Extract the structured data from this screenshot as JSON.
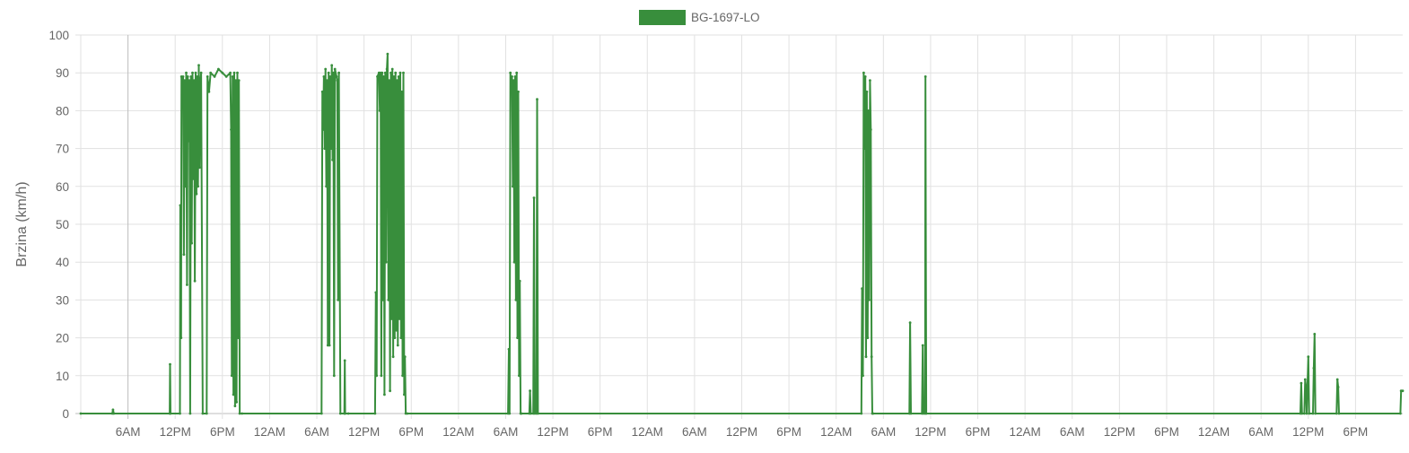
{
  "chart_data": {
    "type": "line",
    "legend": {
      "position": "top",
      "entries": [
        {
          "name": "BG-1697-LO",
          "color": "#388e3c"
        }
      ]
    },
    "ylabel": "Brzina (km/h)",
    "xlabel": "",
    "ylim": [
      0,
      100
    ],
    "y_ticks": [
      0,
      10,
      20,
      30,
      40,
      50,
      60,
      70,
      80,
      90,
      100
    ],
    "x_range_hours": [
      0,
      168
    ],
    "x_ticks": [
      {
        "h": 6,
        "label": "6AM"
      },
      {
        "h": 12,
        "label": "12PM"
      },
      {
        "h": 18,
        "label": "6PM"
      },
      {
        "h": 24,
        "label": "12AM"
      },
      {
        "h": 30,
        "label": "6AM"
      },
      {
        "h": 36,
        "label": "12PM"
      },
      {
        "h": 42,
        "label": "6PM"
      },
      {
        "h": 48,
        "label": "12AM"
      },
      {
        "h": 54,
        "label": "6AM"
      },
      {
        "h": 60,
        "label": "12PM"
      },
      {
        "h": 66,
        "label": "6PM"
      },
      {
        "h": 72,
        "label": "12AM"
      },
      {
        "h": 78,
        "label": "6AM"
      },
      {
        "h": 84,
        "label": "12PM"
      },
      {
        "h": 90,
        "label": "6PM"
      },
      {
        "h": 96,
        "label": "12AM"
      },
      {
        "h": 102,
        "label": "6AM"
      },
      {
        "h": 108,
        "label": "12PM"
      },
      {
        "h": 114,
        "label": "6PM"
      },
      {
        "h": 120,
        "label": "12AM"
      },
      {
        "h": 126,
        "label": "6AM"
      },
      {
        "h": 132,
        "label": "12PM"
      },
      {
        "h": 138,
        "label": "6PM"
      },
      {
        "h": 144,
        "label": "12AM"
      },
      {
        "h": 150,
        "label": "6AM"
      },
      {
        "h": 156,
        "label": "12PM"
      },
      {
        "h": 162,
        "label": "6PM"
      }
    ],
    "grid": true,
    "series": [
      {
        "name": "BG-1697-LO",
        "color": "#388e3c",
        "points": [
          [
            0,
            0
          ],
          [
            4,
            0
          ],
          [
            4.1,
            1
          ],
          [
            4.2,
            0
          ],
          [
            11.3,
            0
          ],
          [
            11.35,
            13
          ],
          [
            11.4,
            0
          ],
          [
            12.6,
            0
          ],
          [
            12.65,
            55
          ],
          [
            12.75,
            20
          ],
          [
            12.8,
            89
          ],
          [
            12.9,
            84
          ],
          [
            13.0,
            89
          ],
          [
            13.1,
            42
          ],
          [
            13.2,
            88
          ],
          [
            13.3,
            60
          ],
          [
            13.4,
            90
          ],
          [
            13.5,
            34
          ],
          [
            13.6,
            89
          ],
          [
            13.7,
            72
          ],
          [
            13.8,
            88
          ],
          [
            13.9,
            0
          ],
          [
            14.0,
            89
          ],
          [
            14.1,
            45
          ],
          [
            14.2,
            90
          ],
          [
            14.3,
            62
          ],
          [
            14.4,
            88
          ],
          [
            14.5,
            35
          ],
          [
            14.6,
            90
          ],
          [
            14.7,
            58
          ],
          [
            14.8,
            89
          ],
          [
            14.9,
            60
          ],
          [
            15.0,
            92
          ],
          [
            15.1,
            65
          ],
          [
            15.2,
            88
          ],
          [
            15.3,
            90
          ],
          [
            15.5,
            0
          ],
          [
            16.0,
            0
          ],
          [
            16.1,
            89
          ],
          [
            16.3,
            85
          ],
          [
            16.5,
            90
          ],
          [
            17.0,
            89
          ],
          [
            17.5,
            91
          ],
          [
            18.0,
            90
          ],
          [
            18.5,
            89
          ],
          [
            19.0,
            90
          ],
          [
            19.1,
            75
          ],
          [
            19.2,
            10
          ],
          [
            19.3,
            89
          ],
          [
            19.4,
            5
          ],
          [
            19.5,
            90
          ],
          [
            19.6,
            2
          ],
          [
            19.7,
            88
          ],
          [
            19.8,
            3
          ],
          [
            19.9,
            90
          ],
          [
            20.0,
            20
          ],
          [
            20.1,
            88
          ],
          [
            20.2,
            0
          ],
          [
            20.5,
            0
          ],
          [
            30.6,
            0
          ],
          [
            30.7,
            85
          ],
          [
            30.8,
            75
          ],
          [
            30.9,
            89
          ],
          [
            31.0,
            70
          ],
          [
            31.1,
            91
          ],
          [
            31.2,
            60
          ],
          [
            31.3,
            88
          ],
          [
            31.4,
            18
          ],
          [
            31.5,
            90
          ],
          [
            31.6,
            18
          ],
          [
            31.7,
            89
          ],
          [
            31.8,
            70
          ],
          [
            31.9,
            92
          ],
          [
            32.0,
            67
          ],
          [
            32.1,
            90
          ],
          [
            32.2,
            10
          ],
          [
            32.3,
            91
          ],
          [
            32.5,
            89
          ],
          [
            32.6,
            88
          ],
          [
            32.7,
            30
          ],
          [
            32.8,
            90
          ],
          [
            33.0,
            0
          ],
          [
            33.5,
            0
          ],
          [
            33.55,
            14
          ],
          [
            33.6,
            0
          ],
          [
            34.0,
            0
          ],
          [
            37.4,
            0
          ],
          [
            37.5,
            32
          ],
          [
            37.6,
            10
          ],
          [
            37.7,
            89
          ],
          [
            37.9,
            90
          ],
          [
            38.0,
            80
          ],
          [
            38.1,
            90
          ],
          [
            38.2,
            10
          ],
          [
            38.3,
            90
          ],
          [
            38.4,
            30
          ],
          [
            38.5,
            89
          ],
          [
            38.6,
            5
          ],
          [
            38.7,
            90
          ],
          [
            38.8,
            40
          ],
          [
            38.9,
            91
          ],
          [
            39.0,
            95
          ],
          [
            39.1,
            30
          ],
          [
            39.2,
            88
          ],
          [
            39.3,
            6
          ],
          [
            39.4,
            90
          ],
          [
            39.5,
            25
          ],
          [
            39.6,
            91
          ],
          [
            39.7,
            15
          ],
          [
            39.8,
            89
          ],
          [
            39.9,
            20
          ],
          [
            40.0,
            90
          ],
          [
            40.1,
            22
          ],
          [
            40.2,
            88
          ],
          [
            40.3,
            18
          ],
          [
            40.4,
            89
          ],
          [
            40.5,
            25
          ],
          [
            40.6,
            90
          ],
          [
            40.7,
            20
          ],
          [
            40.8,
            85
          ],
          [
            40.9,
            10
          ],
          [
            41.0,
            90
          ],
          [
            41.1,
            5
          ],
          [
            41.2,
            15
          ],
          [
            41.3,
            0
          ],
          [
            41.5,
            0
          ],
          [
            54.3,
            0
          ],
          [
            54.4,
            17
          ],
          [
            54.5,
            0
          ],
          [
            54.6,
            90
          ],
          [
            54.7,
            85
          ],
          [
            54.8,
            89
          ],
          [
            54.9,
            60
          ],
          [
            55.0,
            88
          ],
          [
            55.1,
            40
          ],
          [
            55.2,
            89
          ],
          [
            55.3,
            30
          ],
          [
            55.4,
            90
          ],
          [
            55.5,
            20
          ],
          [
            55.6,
            85
          ],
          [
            55.7,
            10
          ],
          [
            55.8,
            35
          ],
          [
            55.9,
            0
          ],
          [
            56.0,
            0
          ],
          [
            57.0,
            0
          ],
          [
            57.1,
            6
          ],
          [
            57.2,
            0
          ],
          [
            57.5,
            0
          ],
          [
            57.6,
            57
          ],
          [
            57.7,
            0
          ],
          [
            57.9,
            0
          ],
          [
            58.0,
            83
          ],
          [
            58.1,
            0
          ],
          [
            99.2,
            0
          ],
          [
            99.3,
            33
          ],
          [
            99.4,
            10
          ],
          [
            99.5,
            90
          ],
          [
            99.6,
            70
          ],
          [
            99.7,
            89
          ],
          [
            99.8,
            15
          ],
          [
            99.9,
            85
          ],
          [
            100.0,
            20
          ],
          [
            100.1,
            80
          ],
          [
            100.2,
            30
          ],
          [
            100.3,
            88
          ],
          [
            100.4,
            75
          ],
          [
            100.5,
            15
          ],
          [
            100.6,
            0
          ],
          [
            100.7,
            0
          ],
          [
            105.3,
            0
          ],
          [
            105.4,
            24
          ],
          [
            105.5,
            0
          ],
          [
            106.9,
            0
          ],
          [
            107.0,
            18
          ],
          [
            107.1,
            0
          ],
          [
            107.3,
            0
          ],
          [
            107.35,
            89
          ],
          [
            107.45,
            0
          ],
          [
            155.0,
            0
          ],
          [
            155.1,
            8
          ],
          [
            155.2,
            0
          ],
          [
            155.5,
            0
          ],
          [
            155.6,
            9
          ],
          [
            155.7,
            7
          ],
          [
            155.8,
            0
          ],
          [
            156.0,
            15
          ],
          [
            156.1,
            0
          ],
          [
            156.6,
            0
          ],
          [
            156.7,
            12
          ],
          [
            156.8,
            21
          ],
          [
            156.9,
            0
          ],
          [
            159.6,
            0
          ],
          [
            159.7,
            9
          ],
          [
            159.8,
            7
          ],
          [
            159.9,
            0
          ],
          [
            167.7,
            0
          ],
          [
            167.8,
            6
          ],
          [
            168,
            6
          ]
        ]
      }
    ]
  }
}
